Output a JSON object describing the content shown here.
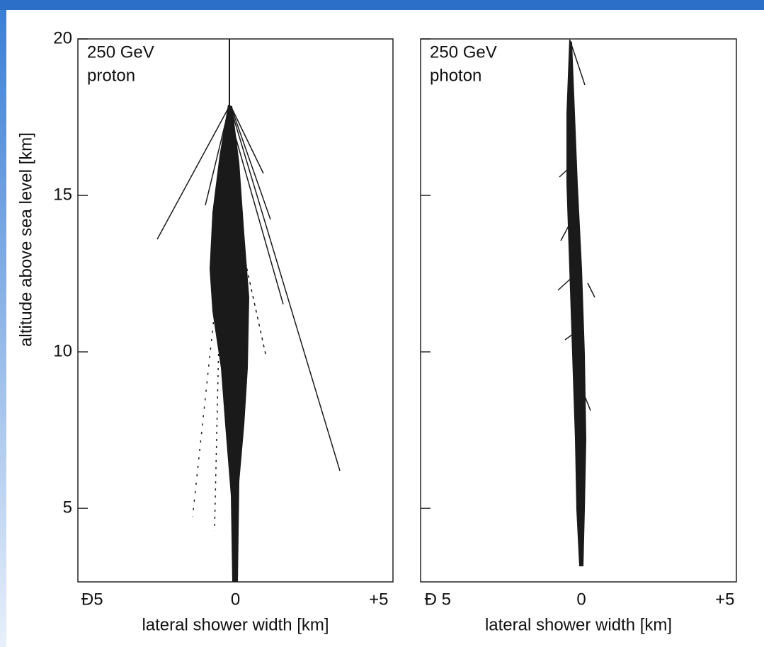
{
  "chart_data": [
    {
      "type": "shower",
      "annotation": [
        "250 GeV",
        "proton"
      ],
      "xlabel": "lateral shower width [km]",
      "ylabel": "altitude above sea level [km]",
      "xlim": [
        -5.5,
        5.5
      ],
      "xticks": [
        {
          "value": -5,
          "label": "Ð5"
        },
        0,
        {
          "value": 5,
          "label": "+5"
        }
      ],
      "ylim": [
        2.65,
        20
      ],
      "yticks": [
        5,
        10,
        15,
        20
      ],
      "show_ytick_labels": true
    },
    {
      "type": "shower",
      "annotation": [
        "250 GeV",
        "photon"
      ],
      "xlabel": "lateral shower width [km]",
      "xlim": [
        -5.6,
        5.4
      ],
      "xticks": [
        {
          "value": -5,
          "label": "Ð 5"
        },
        0,
        {
          "value": 5,
          "label": "+5"
        }
      ],
      "ylim": [
        2.65,
        20
      ],
      "yticks": [
        5,
        10,
        15,
        20
      ],
      "show_ytick_labels": false
    }
  ]
}
